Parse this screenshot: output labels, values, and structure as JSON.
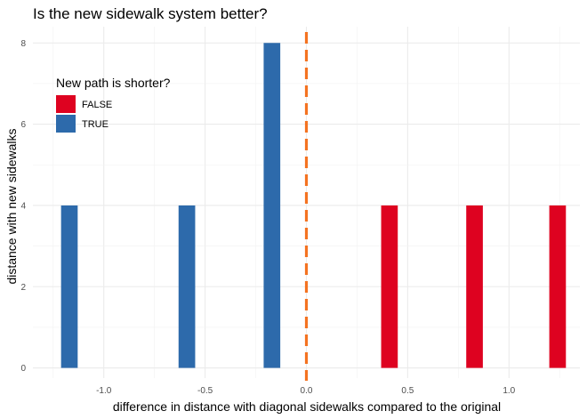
{
  "chart_data": {
    "type": "bar",
    "title": "Is the new sidewalk system better?",
    "xlabel": "difference in distance with diagonal sidewalks compared to the original",
    "ylabel": "distance with new sidewalks",
    "xlim": [
      -1.35,
      1.35
    ],
    "ylim": [
      -0.25,
      8.4
    ],
    "x_ticks": [
      -1.0,
      -0.5,
      0.0,
      0.5,
      1.0
    ],
    "x_tick_labels": [
      "-1.0",
      "-0.5",
      "0.0",
      "0.5",
      "1.0"
    ],
    "y_ticks": [
      0,
      2,
      4,
      6,
      8
    ],
    "y_tick_labels": [
      "0",
      "2",
      "4",
      "6",
      "8"
    ],
    "bar_width": 0.082,
    "grid": true,
    "reference_line": {
      "x": 0.0,
      "style": "dashed",
      "color": "#f47321"
    },
    "legend": {
      "title": "New path is shorter?",
      "placement": "top-left",
      "entries": [
        {
          "label": "FALSE",
          "color": "#de0220"
        },
        {
          "label": "TRUE",
          "color": "#2d6aab"
        }
      ]
    },
    "series": [
      {
        "name": "FALSE",
        "color": "#de0220",
        "x": [
          0.41,
          0.83,
          1.24
        ],
        "values": [
          4,
          4,
          4
        ]
      },
      {
        "name": "TRUE",
        "color": "#2d6aab",
        "x": [
          -1.17,
          -0.59,
          -0.17
        ],
        "values": [
          4,
          4,
          8
        ]
      }
    ]
  }
}
